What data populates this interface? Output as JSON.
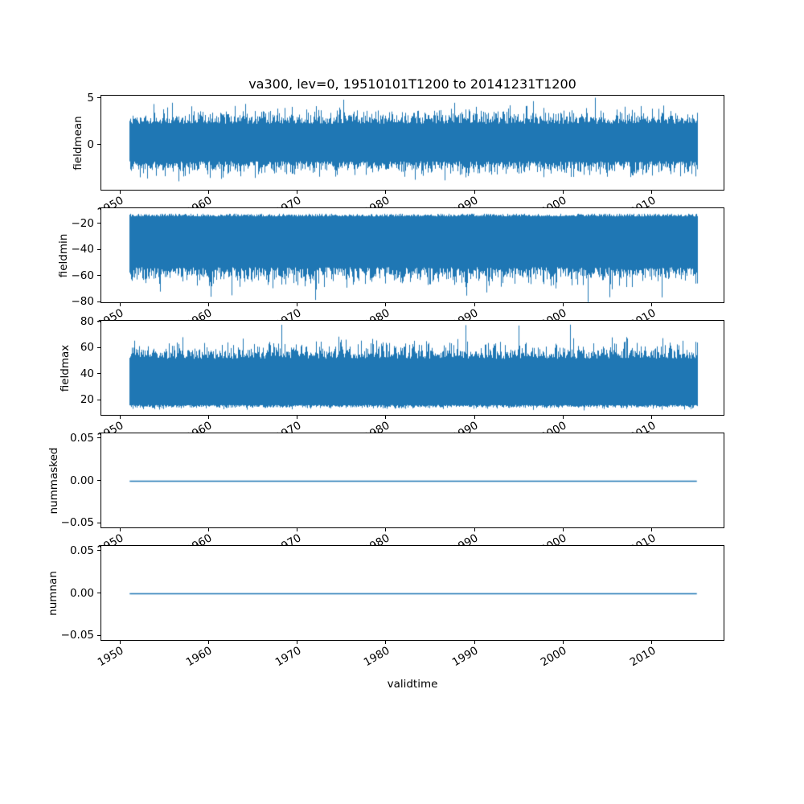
{
  "figure": {
    "title": "va300, lev=0, 19510101T1200 to 20141231T1200",
    "xlabel": "validtime",
    "background_color": "#ffffff",
    "line_color": "#1f77b4",
    "frame_color": "#000000",
    "text_color": "#000000"
  },
  "x_axis": {
    "label": "validtime",
    "tick_labels": [
      "1950",
      "1960",
      "1970",
      "1980",
      "1990",
      "2000",
      "2010"
    ],
    "tick_values": [
      1950,
      1960,
      1970,
      1980,
      1990,
      2000,
      2010
    ],
    "range": [
      1947.8,
      2018.2
    ],
    "data_start": 1951.0,
    "data_end": 2015.0,
    "tick_rotation_deg": 30
  },
  "chart_data": [
    {
      "type": "line",
      "ylabel": "fieldmean",
      "ytick_values": [
        5,
        0
      ],
      "ytick_labels": [
        "5",
        "0"
      ],
      "ylim": [
        -4.9,
        5.3
      ],
      "x_range": [
        1951.0,
        2015.0
      ],
      "grid": false,
      "series": [
        {
          "name": "fieldmean",
          "pattern": "dense-noise",
          "approx_mean": 0.3,
          "typical_band": [
            -2.7,
            3.3
          ],
          "observed_min": -4.45,
          "observed_max": 5.24
        }
      ],
      "render": {
        "style": "dense",
        "seed": 11,
        "top_base": 2.3,
        "top_jitter": 1.1,
        "top_max": 5.24,
        "bot_base": -1.7,
        "bot_jitter": 1.0,
        "bot_min": -4.45,
        "spike_prob": 0.015
      }
    },
    {
      "type": "line",
      "ylabel": "fieldmin",
      "ytick_values": [
        -20,
        -40,
        -60,
        -80
      ],
      "ytick_labels": [
        "−20",
        "−40",
        "−60",
        "−80"
      ],
      "ylim": [
        -81,
        -8
      ],
      "x_range": [
        1951.0,
        2015.0
      ],
      "grid": false,
      "series": [
        {
          "name": "fieldmin",
          "pattern": "dense-noise",
          "typical_band": [
            -65,
            -13
          ],
          "observed_min": -80,
          "observed_max": -12
        }
      ],
      "render": {
        "style": "dense",
        "seed": 22,
        "top_base": -14.3,
        "top_jitter": 1.6,
        "top_max": -12.2,
        "bot_base": -53,
        "bot_jitter": 9,
        "bot_min": -80,
        "spike_prob": 0.012
      }
    },
    {
      "type": "line",
      "ylabel": "fieldmax",
      "ytick_values": [
        80,
        60,
        40,
        20
      ],
      "ytick_labels": [
        "80",
        "60",
        "40",
        "20"
      ],
      "ylim": [
        8,
        81
      ],
      "x_range": [
        1951.0,
        2015.0
      ],
      "grid": false,
      "series": [
        {
          "name": "fieldmax",
          "pattern": "dense-noise",
          "typical_band": [
            15,
            62
          ],
          "observed_min": 12,
          "observed_max": 79.5
        }
      ],
      "render": {
        "style": "dense",
        "seed": 33,
        "top_base": 52,
        "top_jitter": 8.5,
        "top_max": 79.5,
        "bot_base": 16.8,
        "bot_jitter": 1.9,
        "bot_min": 12.5,
        "spike_prob": 0.012
      }
    },
    {
      "type": "line",
      "ylabel": "nummasked",
      "ytick_values": [
        0.05,
        0.0,
        -0.05
      ],
      "ytick_labels": [
        "0.05",
        "0.00",
        "−0.05"
      ],
      "ylim": [
        -0.0565,
        0.0565
      ],
      "x_range": [
        1951.0,
        2015.0
      ],
      "grid": false,
      "series": [
        {
          "name": "nummasked",
          "pattern": "constant",
          "value": 0.0
        }
      ],
      "render": {
        "style": "flat",
        "seed": 44,
        "value": 0.0
      }
    },
    {
      "type": "line",
      "ylabel": "numnan",
      "xlabel": "validtime",
      "ytick_values": [
        0.05,
        0.0,
        -0.05
      ],
      "ytick_labels": [
        "0.05",
        "0.00",
        "−0.05"
      ],
      "ylim": [
        -0.0565,
        0.0565
      ],
      "x_range": [
        1951.0,
        2015.0
      ],
      "grid": false,
      "series": [
        {
          "name": "numnan",
          "pattern": "constant",
          "value": 0.0
        }
      ],
      "render": {
        "style": "flat",
        "seed": 55,
        "value": 0.0
      }
    }
  ]
}
